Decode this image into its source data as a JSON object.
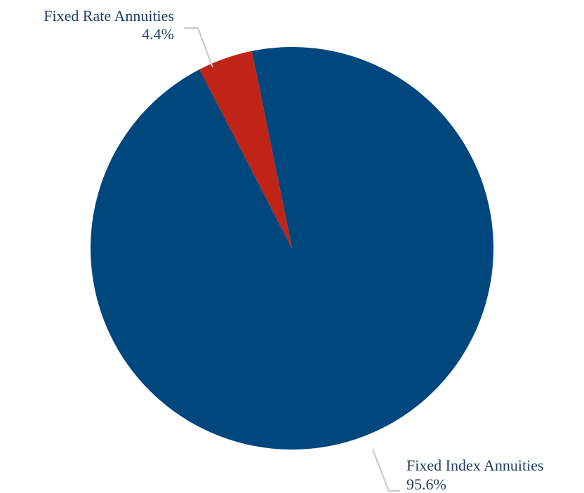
{
  "chart_data": {
    "type": "pie",
    "title": "",
    "start_angle_deg": -11.5,
    "direction": "clockwise",
    "slices": [
      {
        "name": "Fixed Index Annuities",
        "value": 95.6,
        "label": "95.6%",
        "color": "#00477d"
      },
      {
        "name": "Fixed Rate Annuities",
        "value": 4.4,
        "label": "4.4%",
        "color": "#c02417"
      }
    ]
  }
}
